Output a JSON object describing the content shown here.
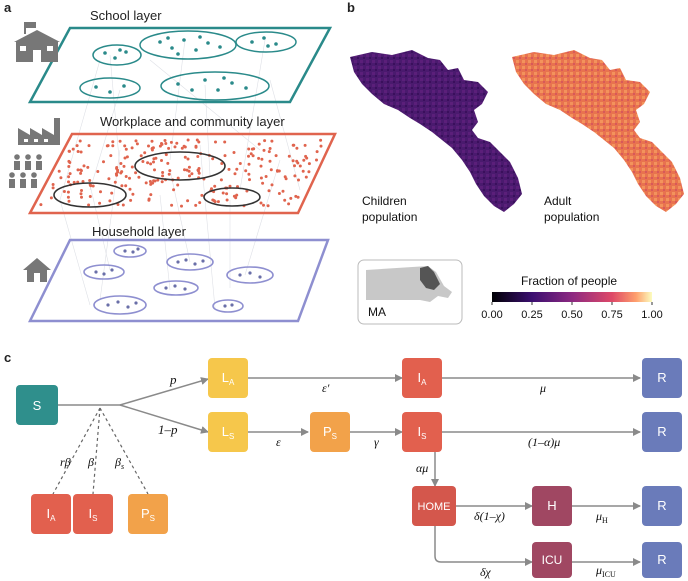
{
  "panels": {
    "a": "a",
    "b": "b",
    "c": "c"
  },
  "layers": {
    "school": "School layer",
    "workplace": "Workplace and community layer",
    "household": "Household layer"
  },
  "maps": {
    "children_line1": "Children",
    "children_line2": "population",
    "adult_line1": "Adult",
    "adult_line2": "population",
    "state_label": "MA"
  },
  "colorbar": {
    "title": "Fraction of people",
    "ticks": [
      "0.00",
      "0.25",
      "0.50",
      "0.75",
      "1.00"
    ]
  },
  "colors": {
    "teal": "#2a8a8a",
    "red": "#e0644e",
    "lavender": "#8e8fd0",
    "yellow": "#f6c74b",
    "orange": "#f2a24a",
    "red_node": "#e2604e",
    "maroon": "#a04762",
    "blue_node": "#6a7bba",
    "teal_node": "#2f8f8c"
  },
  "diagram": {
    "nodes": {
      "S": "S",
      "LA_main": "L",
      "LA_sub": "A",
      "LS_main": "L",
      "LS_sub": "S",
      "PS_main": "P",
      "PS_sub": "S",
      "IA_main": "I",
      "IA_sub": "A",
      "IS_main": "I",
      "IS_sub": "S",
      "HOME": "HOME",
      "H": "H",
      "ICU": "ICU",
      "R1": "R",
      "R2": "R",
      "R3": "R",
      "R4": "R",
      "bIA_main": "I",
      "bIA_sub": "A",
      "bIS_main": "I",
      "bIS_sub": "S",
      "bPS_main": "P",
      "bPS_sub": "S"
    },
    "rates": {
      "p": "p",
      "one_minus_p": "1–p",
      "eps_prime": "ε′",
      "mu": "μ",
      "eps": "ε",
      "gamma": "γ",
      "one_minus_alpha_mu": "(1–α)μ",
      "alpha_mu": "αμ",
      "delta_one_minus_chi": "δ(1–χ)",
      "mu_H_main": "μ",
      "mu_H_sub": "H",
      "delta_chi": "δχ",
      "mu_ICU_main": "μ",
      "mu_ICU_sub": "ICU",
      "r_beta": "rβ",
      "beta": "β",
      "beta_s_main": "β",
      "beta_s_sub": "s"
    }
  }
}
